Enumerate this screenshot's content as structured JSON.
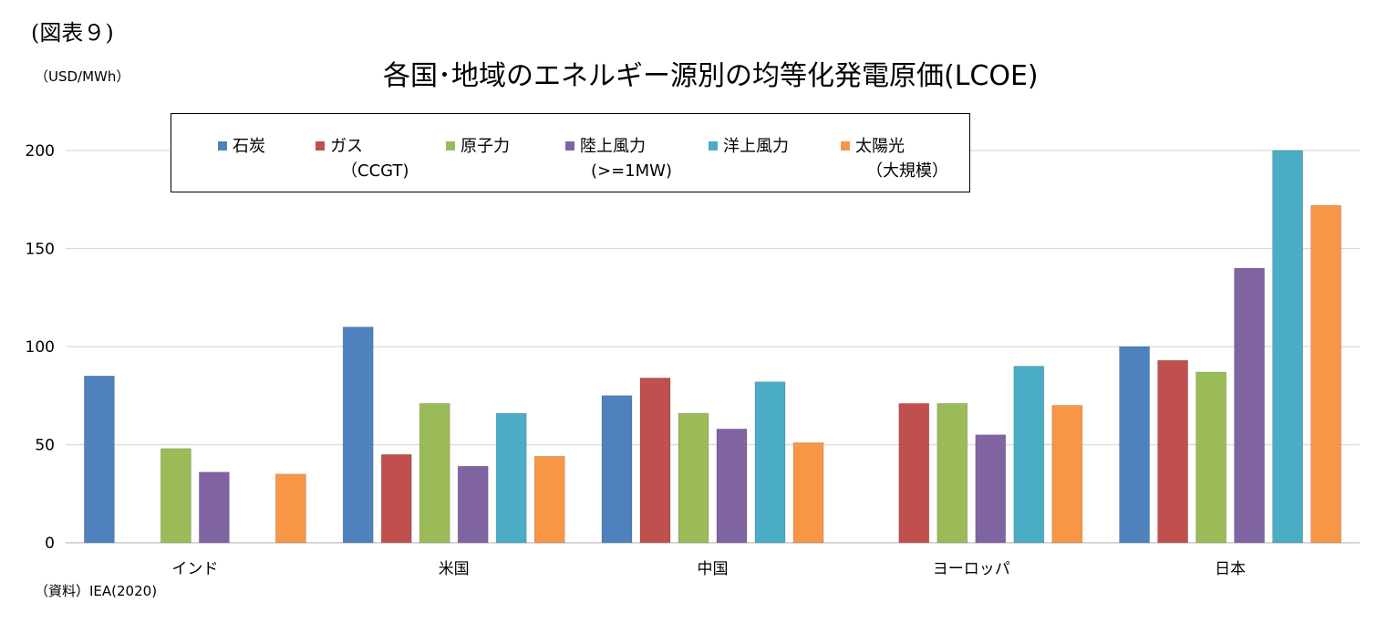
{
  "figure_label": "(図表９)",
  "unit": "（USD/MWh）",
  "source": "（資料）IEA(2020)",
  "chart_data": {
    "type": "bar",
    "title": "各国･地域のエネルギー源別の均等化発電原価(LCOE)",
    "ylabel": "（USD/MWh）",
    "xlabel": "",
    "ylim": [
      0,
      200
    ],
    "yticks": [
      0,
      50,
      100,
      150,
      200
    ],
    "grid": true,
    "legend_placement": "top",
    "categories": [
      "インド",
      "米国",
      "中国",
      "ヨーロッパ",
      "日本"
    ],
    "series": [
      {
        "name": "石炭",
        "name_sub": "",
        "color": "#4F81BD",
        "values": [
          85,
          110,
          75,
          null,
          100
        ]
      },
      {
        "name": "ガス",
        "name_sub": "（CCGT)",
        "color": "#C0504D",
        "values": [
          null,
          45,
          84,
          71,
          93
        ]
      },
      {
        "name": "原子力",
        "name_sub": "",
        "color": "#9BBB59",
        "values": [
          48,
          71,
          66,
          71,
          87
        ]
      },
      {
        "name": "陸上風力",
        "name_sub": "(>=1MW)",
        "color": "#8064A2",
        "values": [
          36,
          39,
          58,
          55,
          140
        ]
      },
      {
        "name": "洋上風力",
        "name_sub": "",
        "color": "#4BACC6",
        "values": [
          null,
          66,
          82,
          90,
          200
        ]
      },
      {
        "name": "太陽光",
        "name_sub": "（大規模）",
        "color": "#F79646",
        "values": [
          35,
          44,
          51,
          70,
          172
        ]
      }
    ]
  }
}
